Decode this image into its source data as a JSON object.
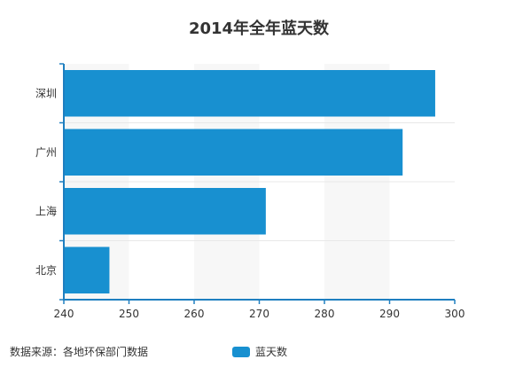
{
  "source_note": "数据来源：各地环保部门数据",
  "colors": {
    "bar": "#1890d0",
    "axis": "#1f7fc0",
    "stripe": "#f7f7f7",
    "grid": "#e8e8e8"
  },
  "chart_data": {
    "type": "bar",
    "orientation": "horizontal",
    "title": "2014年全年蓝天数",
    "categories": [
      "深圳",
      "广州",
      "上海",
      "北京"
    ],
    "series": [
      {
        "name": "蓝天数",
        "values": [
          297,
          292,
          271,
          247
        ]
      }
    ],
    "xlim": [
      240,
      300
    ],
    "xticks": [
      240,
      250,
      260,
      270,
      280,
      290,
      300
    ],
    "legend": "bottom-center",
    "grid": true
  }
}
